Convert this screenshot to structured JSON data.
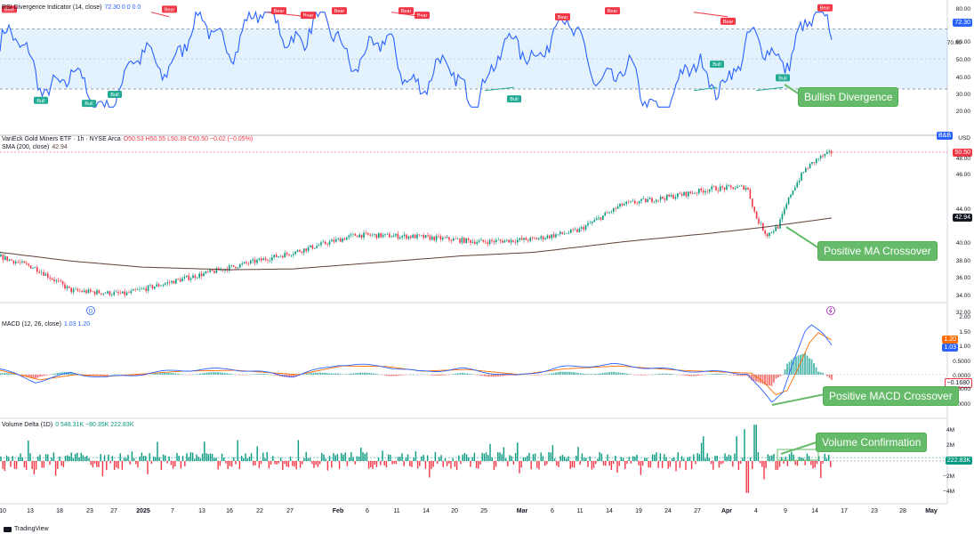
{
  "panes": {
    "rsi": {
      "title": "RSI Divergence Indicator (14, close)",
      "values_text": "72.30  0  0  0  0",
      "last_value": "72.30",
      "ticks": [
        "80.00",
        "70.00",
        "60.00",
        "50.00",
        "40.00",
        "30.00",
        "20.00"
      ],
      "bear_label": "Bear",
      "bull_label": "Bull",
      "callout": "Bullish Divergence"
    },
    "price": {
      "title": "VanEck Gold Miners ETF · 1h · NYSE Arca",
      "ohlc_text": "O50.53  H50.55  L50.39  C50.50  −0.02 (−0.05%)",
      "ma_title": "SMA (200, close)",
      "ma_value": "42.94",
      "currency": "USD",
      "currency_badge": "B&B",
      "last_price": "50.50",
      "ma_badge": "42.94",
      "ticks": [
        "48.00",
        "46.00",
        "44.00",
        "40.00",
        "38.00",
        "36.00",
        "34.00",
        "32.00"
      ],
      "callout": "Positive MA Crossover",
      "marker_d": "D"
    },
    "macd": {
      "title": "MACD (12, 26, close)",
      "values_text": "1.03  1.20",
      "value_macd": "1.03",
      "value_signal": "1.20",
      "ticks": [
        "2.00",
        "1.50",
        "1.00",
        "0.5000",
        "0.0000",
        "−0.5000",
        "−1.0000"
      ],
      "badge_zero": "−0.1680",
      "callout": "Positive MACD Crossover"
    },
    "volume": {
      "title": "Volume Delta (1D)",
      "values_text": "0  548.31K  −80.35K  222.83K",
      "last_value": "222.83K",
      "ticks": [
        "4M",
        "2M",
        "−2M",
        "−4M"
      ],
      "callout": "Volume Confirmation"
    }
  },
  "x_axis": [
    "10",
    "13",
    "18",
    "23",
    "27",
    "2025",
    "7",
    "13",
    "16",
    "22",
    "27",
    "Feb",
    "6",
    "11",
    "14",
    "20",
    "25",
    "Mar",
    "6",
    "11",
    "14",
    "19",
    "24",
    "27",
    "Apr",
    "4",
    "9",
    "14",
    "17",
    "23",
    "28",
    "May"
  ],
  "footer": {
    "brand": "TradingView"
  },
  "colors": {
    "rsi_line": "#2962ff",
    "bear": "#f23645",
    "bull": "#22ab94",
    "up": "#089981",
    "down": "#f23645",
    "ma": "#5d4037",
    "callout": "#66bb6a",
    "band": "#2196f3"
  },
  "chart_data": [
    {
      "type": "line",
      "title": "RSI Divergence Indicator (14, close)",
      "ylim": [
        15,
        82
      ],
      "x": [
        "Dec 10",
        "Jan 2",
        "Jan 16",
        "Feb 1",
        "Feb 20",
        "Mar 6",
        "Mar 19",
        "Apr 4",
        "Apr 9",
        "Apr 16"
      ],
      "series": [
        {
          "name": "RSI",
          "values": [
            60,
            22,
            62,
            75,
            55,
            30,
            70,
            22,
            48,
            72.3
          ]
        }
      ]
    },
    {
      "type": "line",
      "title": "VanEck Gold Miners ETF · 1h · NYSE Arca",
      "ylim": [
        32,
        50.5
      ],
      "x": [
        "Dec 10",
        "Dec 23",
        "Jan 2",
        "Jan 16",
        "Feb 1",
        "Feb 20",
        "Mar 6",
        "Mar 19",
        "Apr 1",
        "Apr 7",
        "Apr 16"
      ],
      "series": [
        {
          "name": "Price",
          "values": [
            38.5,
            34.5,
            34.2,
            37.0,
            39.5,
            41.0,
            41.0,
            44.5,
            46.5,
            41.0,
            50.5
          ]
        },
        {
          "name": "SMA (200, close)",
          "values": [
            39.0,
            38.0,
            37.2,
            37.0,
            37.5,
            38.5,
            39.2,
            40.5,
            41.5,
            41.9,
            42.94
          ]
        }
      ]
    },
    {
      "type": "line",
      "title": "MACD (12, 26, close)",
      "ylim": [
        -1.1,
        2.0
      ],
      "x": [
        "Dec 10",
        "Jan 2",
        "Feb 1",
        "Mar 6",
        "Apr 1",
        "Apr 7",
        "Apr 14",
        "Apr 16"
      ],
      "series": [
        {
          "name": "MACD",
          "values": [
            0.2,
            -0.2,
            0.3,
            0.1,
            0.05,
            -1.0,
            1.7,
            1.03
          ]
        },
        {
          "name": "Signal",
          "values": [
            0.15,
            -0.15,
            0.25,
            0.1,
            0.05,
            -0.7,
            1.4,
            1.2
          ]
        }
      ]
    }
  ]
}
